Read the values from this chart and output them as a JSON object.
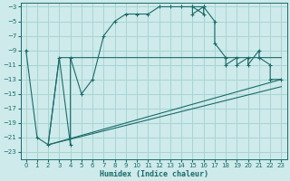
{
  "xlabel": "Humidex (Indice chaleur)",
  "bg_color": "#ceeaea",
  "grid_color": "#a8d4d4",
  "line_color": "#1a6b6b",
  "xlim": [
    -0.5,
    23.5
  ],
  "ylim": [
    -24,
    -2.5
  ],
  "xticks": [
    0,
    1,
    2,
    3,
    4,
    5,
    6,
    7,
    8,
    9,
    10,
    11,
    12,
    13,
    14,
    15,
    16,
    17,
    18,
    19,
    20,
    21,
    22,
    23
  ],
  "yticks": [
    -3,
    -5,
    -7,
    -9,
    -11,
    -13,
    -15,
    -17,
    -19,
    -21,
    -23
  ],
  "curve1_x": [
    0,
    1,
    2,
    3,
    4,
    4,
    5,
    6,
    7,
    8,
    9,
    10,
    11,
    12,
    13,
    14,
    15,
    15,
    16,
    16,
    15,
    16,
    17,
    17,
    18,
    18,
    19,
    19,
    20,
    20,
    21,
    21,
    22,
    22,
    23
  ],
  "curve1_y": [
    -9,
    -21,
    -22,
    -10,
    -22,
    -10,
    -15,
    -13,
    -7,
    -5,
    -4,
    -4,
    -4,
    -3,
    -3,
    -3,
    -3,
    -4,
    -3,
    -4,
    -3,
    -3,
    -5,
    -8,
    -10,
    -11,
    -10,
    -11,
    -10,
    -11,
    -9,
    -10,
    -11,
    -13,
    -13
  ],
  "curve2_x": [
    2,
    3,
    18,
    19,
    20,
    21,
    22,
    23
  ],
  "curve2_y": [
    -22,
    -10,
    -10,
    -10,
    -10,
    -10,
    -10,
    -10
  ],
  "curve3_x": [
    2,
    23
  ],
  "curve3_y": [
    -22,
    -13
  ],
  "curve4_x": [
    2,
    23
  ],
  "curve4_y": [
    -22,
    -14
  ],
  "marker": "+"
}
